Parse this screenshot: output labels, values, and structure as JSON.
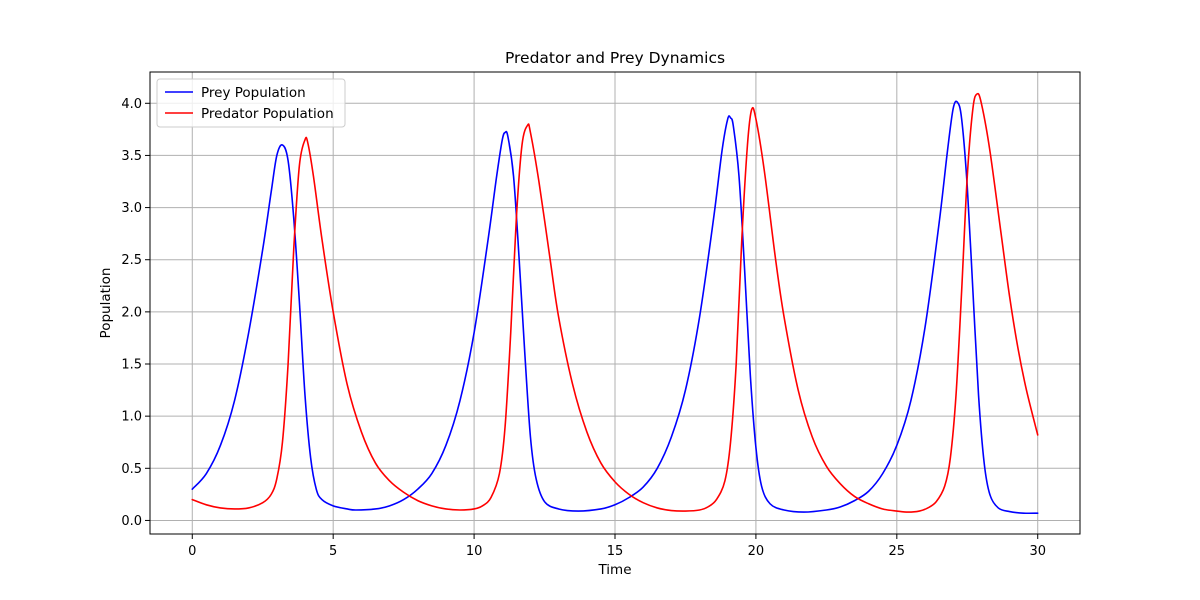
{
  "chart_data": {
    "type": "line",
    "title": "Predator and Prey Dynamics",
    "xlabel": "Time",
    "ylabel": "Population",
    "xlim": [
      -1.5,
      31.5
    ],
    "ylim": [
      -0.13,
      4.3
    ],
    "xticks": [
      0,
      5,
      10,
      15,
      20,
      25,
      30
    ],
    "yticks": [
      0.0,
      0.5,
      1.0,
      1.5,
      2.0,
      2.5,
      3.0,
      3.5,
      4.0
    ],
    "xtick_labels": [
      "0",
      "5",
      "10",
      "15",
      "20",
      "25",
      "30"
    ],
    "ytick_labels": [
      "0.0",
      "0.5",
      "1.0",
      "1.5",
      "2.0",
      "2.5",
      "3.0",
      "3.5",
      "4.0"
    ],
    "grid": true,
    "legend_position": "upper-left",
    "series": [
      {
        "name": "Prey Population",
        "color": "#0000ff",
        "points": [
          [
            0,
            0.3
          ],
          [
            0.5,
            0.45
          ],
          [
            1.0,
            0.72
          ],
          [
            1.5,
            1.15
          ],
          [
            2.0,
            1.8
          ],
          [
            2.5,
            2.6
          ],
          [
            2.8,
            3.15
          ],
          [
            3.0,
            3.5
          ],
          [
            3.2,
            3.6
          ],
          [
            3.4,
            3.45
          ],
          [
            3.6,
            2.9
          ],
          [
            3.8,
            2.1
          ],
          [
            4.0,
            1.2
          ],
          [
            4.2,
            0.6
          ],
          [
            4.4,
            0.3
          ],
          [
            4.6,
            0.2
          ],
          [
            5.0,
            0.14
          ],
          [
            5.5,
            0.11
          ],
          [
            5.8,
            0.1
          ],
          [
            6.5,
            0.11
          ],
          [
            7.0,
            0.14
          ],
          [
            7.5,
            0.2
          ],
          [
            8.0,
            0.3
          ],
          [
            8.5,
            0.45
          ],
          [
            9.0,
            0.72
          ],
          [
            9.5,
            1.15
          ],
          [
            10.0,
            1.8
          ],
          [
            10.5,
            2.7
          ],
          [
            10.8,
            3.3
          ],
          [
            11.0,
            3.65
          ],
          [
            11.1,
            3.72
          ],
          [
            11.2,
            3.68
          ],
          [
            11.4,
            3.3
          ],
          [
            11.6,
            2.5
          ],
          [
            11.8,
            1.6
          ],
          [
            12.0,
            0.8
          ],
          [
            12.2,
            0.4
          ],
          [
            12.5,
            0.18
          ],
          [
            13.0,
            0.11
          ],
          [
            13.7,
            0.09
          ],
          [
            14.5,
            0.11
          ],
          [
            15.0,
            0.15
          ],
          [
            15.5,
            0.22
          ],
          [
            16.0,
            0.32
          ],
          [
            16.5,
            0.5
          ],
          [
            17.0,
            0.8
          ],
          [
            17.5,
            1.25
          ],
          [
            18.0,
            1.95
          ],
          [
            18.5,
            2.9
          ],
          [
            18.8,
            3.55
          ],
          [
            19.0,
            3.85
          ],
          [
            19.1,
            3.86
          ],
          [
            19.2,
            3.78
          ],
          [
            19.4,
            3.3
          ],
          [
            19.6,
            2.4
          ],
          [
            19.8,
            1.4
          ],
          [
            20.0,
            0.7
          ],
          [
            20.2,
            0.33
          ],
          [
            20.5,
            0.16
          ],
          [
            21.0,
            0.1
          ],
          [
            21.7,
            0.08
          ],
          [
            22.5,
            0.1
          ],
          [
            23.0,
            0.13
          ],
          [
            23.5,
            0.19
          ],
          [
            24.0,
            0.28
          ],
          [
            24.5,
            0.45
          ],
          [
            25.0,
            0.72
          ],
          [
            25.5,
            1.15
          ],
          [
            26.0,
            1.85
          ],
          [
            26.5,
            2.85
          ],
          [
            26.8,
            3.55
          ],
          [
            27.0,
            3.95
          ],
          [
            27.15,
            4.01
          ],
          [
            27.3,
            3.85
          ],
          [
            27.5,
            3.2
          ],
          [
            27.7,
            2.2
          ],
          [
            27.9,
            1.2
          ],
          [
            28.1,
            0.55
          ],
          [
            28.3,
            0.25
          ],
          [
            28.6,
            0.12
          ],
          [
            29.0,
            0.085
          ],
          [
            29.5,
            0.07
          ],
          [
            30.0,
            0.07
          ]
        ]
      },
      {
        "name": "Predator Population",
        "color": "#ff0000",
        "points": [
          [
            0,
            0.2
          ],
          [
            0.5,
            0.15
          ],
          [
            1.0,
            0.12
          ],
          [
            1.5,
            0.11
          ],
          [
            2.0,
            0.12
          ],
          [
            2.5,
            0.17
          ],
          [
            2.8,
            0.25
          ],
          [
            3.0,
            0.4
          ],
          [
            3.2,
            0.75
          ],
          [
            3.4,
            1.5
          ],
          [
            3.6,
            2.6
          ],
          [
            3.8,
            3.4
          ],
          [
            4.0,
            3.65
          ],
          [
            4.1,
            3.62
          ],
          [
            4.3,
            3.3
          ],
          [
            4.6,
            2.7
          ],
          [
            5.0,
            2.0
          ],
          [
            5.5,
            1.3
          ],
          [
            6.0,
            0.85
          ],
          [
            6.5,
            0.55
          ],
          [
            7.0,
            0.38
          ],
          [
            7.5,
            0.27
          ],
          [
            8.0,
            0.19
          ],
          [
            8.5,
            0.14
          ],
          [
            9.0,
            0.11
          ],
          [
            9.5,
            0.1
          ],
          [
            10.0,
            0.11
          ],
          [
            10.3,
            0.14
          ],
          [
            10.6,
            0.22
          ],
          [
            10.9,
            0.45
          ],
          [
            11.1,
            0.9
          ],
          [
            11.3,
            1.8
          ],
          [
            11.5,
            2.9
          ],
          [
            11.7,
            3.6
          ],
          [
            11.9,
            3.79
          ],
          [
            12.0,
            3.72
          ],
          [
            12.3,
            3.25
          ],
          [
            12.7,
            2.5
          ],
          [
            13.0,
            1.95
          ],
          [
            13.5,
            1.3
          ],
          [
            14.0,
            0.85
          ],
          [
            14.5,
            0.55
          ],
          [
            15.0,
            0.37
          ],
          [
            15.5,
            0.25
          ],
          [
            16.0,
            0.17
          ],
          [
            16.5,
            0.12
          ],
          [
            17.0,
            0.095
          ],
          [
            17.5,
            0.09
          ],
          [
            18.0,
            0.1
          ],
          [
            18.3,
            0.13
          ],
          [
            18.6,
            0.2
          ],
          [
            18.9,
            0.38
          ],
          [
            19.1,
            0.75
          ],
          [
            19.3,
            1.5
          ],
          [
            19.5,
            2.7
          ],
          [
            19.7,
            3.6
          ],
          [
            19.85,
            3.94
          ],
          [
            20.0,
            3.85
          ],
          [
            20.3,
            3.35
          ],
          [
            20.7,
            2.5
          ],
          [
            21.0,
            1.95
          ],
          [
            21.5,
            1.25
          ],
          [
            22.0,
            0.8
          ],
          [
            22.5,
            0.52
          ],
          [
            23.0,
            0.35
          ],
          [
            23.5,
            0.23
          ],
          [
            24.0,
            0.16
          ],
          [
            24.5,
            0.11
          ],
          [
            25.0,
            0.09
          ],
          [
            25.4,
            0.08
          ],
          [
            25.8,
            0.09
          ],
          [
            26.1,
            0.12
          ],
          [
            26.4,
            0.18
          ],
          [
            26.7,
            0.33
          ],
          [
            26.9,
            0.6
          ],
          [
            27.1,
            1.2
          ],
          [
            27.3,
            2.2
          ],
          [
            27.5,
            3.3
          ],
          [
            27.7,
            3.95
          ],
          [
            27.85,
            4.09
          ],
          [
            28.0,
            4.0
          ],
          [
            28.3,
            3.55
          ],
          [
            28.7,
            2.75
          ],
          [
            29.0,
            2.15
          ],
          [
            29.3,
            1.65
          ],
          [
            29.6,
            1.25
          ],
          [
            30.0,
            0.82
          ]
        ]
      }
    ]
  }
}
